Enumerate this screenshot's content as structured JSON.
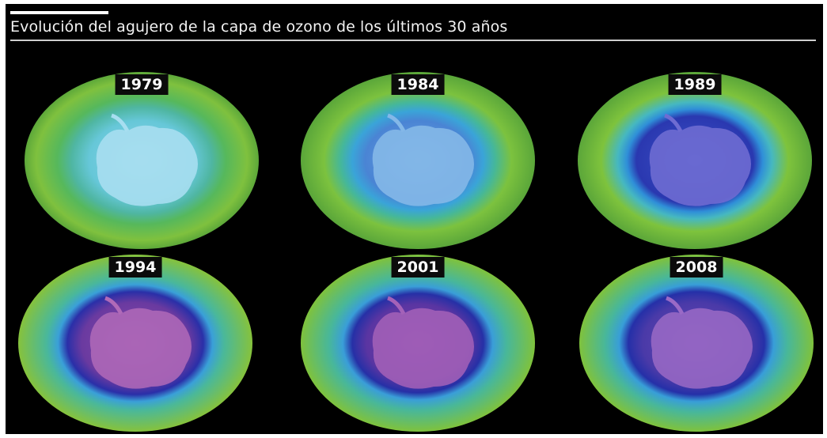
{
  "title": "Evolución del agujero de la capa de ozono de los últimos 30 años",
  "maps": [
    {
      "year": "1979"
    },
    {
      "year": "1984"
    },
    {
      "year": "1989"
    },
    {
      "year": "1994"
    },
    {
      "year": "2001"
    },
    {
      "year": "2008"
    }
  ]
}
